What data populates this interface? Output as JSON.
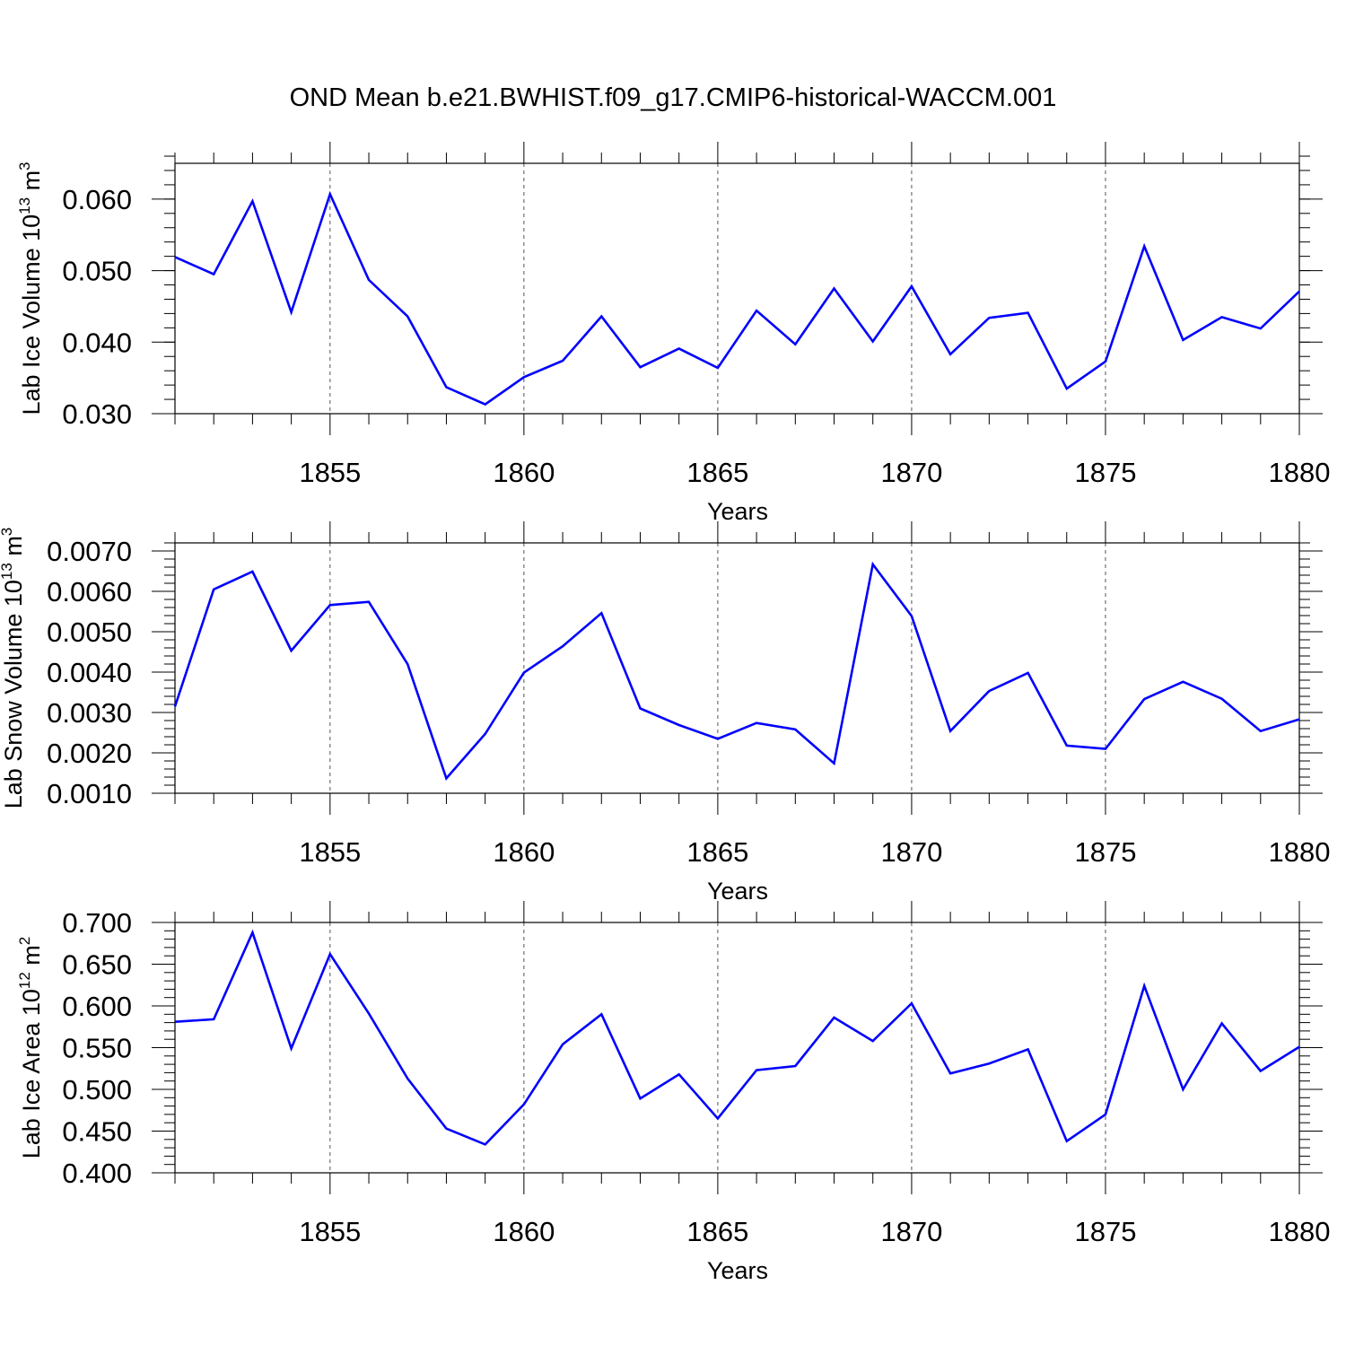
{
  "title": "OND Mean b.e21.BWHIST.f09_g17.CMIP6-historical-WACCM.001",
  "line_color": "#0000ff",
  "chart_data": [
    {
      "type": "line",
      "ylabel": {
        "main": "Lab Ice Volume 10",
        "exp": "13",
        "unit": " m",
        "unit_exp": "3"
      },
      "xlabel": "Years",
      "xlim": [
        1851,
        1880
      ],
      "ylim": [
        0.03,
        0.065
      ],
      "yticks": [
        0.03,
        0.04,
        0.05,
        0.06
      ],
      "ytick_labels": [
        "0.030",
        "0.040",
        "0.050",
        "0.060"
      ],
      "yminor_step": 0.002,
      "xticks": [
        1855,
        1860,
        1865,
        1870,
        1875,
        1880
      ],
      "xtick_labels": [
        "1855",
        "1860",
        "1865",
        "1870",
        "1875",
        "1880"
      ],
      "grid": "x-dashed",
      "x": [
        1851,
        1852,
        1853,
        1854,
        1855,
        1856,
        1857,
        1858,
        1859,
        1860,
        1861,
        1862,
        1863,
        1864,
        1865,
        1866,
        1867,
        1868,
        1869,
        1870,
        1871,
        1872,
        1873,
        1874,
        1875,
        1876,
        1877,
        1878,
        1879,
        1880
      ],
      "values": [
        0.0519,
        0.0495,
        0.0597,
        0.0442,
        0.0607,
        0.0487,
        0.0436,
        0.0337,
        0.0313,
        0.0351,
        0.0374,
        0.0436,
        0.0365,
        0.0391,
        0.0364,
        0.0444,
        0.0397,
        0.0475,
        0.0401,
        0.0478,
        0.0383,
        0.0434,
        0.0441,
        0.0335,
        0.0373,
        0.0534,
        0.0403,
        0.0435,
        0.0419,
        0.0471
      ]
    },
    {
      "type": "line",
      "ylabel": {
        "main": "Lab Snow Volume 10",
        "exp": "13",
        "unit": " m",
        "unit_exp": "3"
      },
      "xlabel": "Years",
      "xlim": [
        1851,
        1880
      ],
      "ylim": [
        0.001,
        0.0072
      ],
      "yticks": [
        0.001,
        0.002,
        0.003,
        0.004,
        0.005,
        0.006,
        0.007
      ],
      "ytick_labels": [
        "0.0010",
        "0.0020",
        "0.0030",
        "0.0040",
        "0.0050",
        "0.0060",
        "0.0070"
      ],
      "yminor_step": 0.0002,
      "xticks": [
        1855,
        1860,
        1865,
        1870,
        1875,
        1880
      ],
      "xtick_labels": [
        "1855",
        "1860",
        "1865",
        "1870",
        "1875",
        "1880"
      ],
      "grid": "x-dashed",
      "x": [
        1851,
        1852,
        1853,
        1854,
        1855,
        1856,
        1857,
        1858,
        1859,
        1860,
        1861,
        1862,
        1863,
        1864,
        1865,
        1866,
        1867,
        1868,
        1869,
        1870,
        1871,
        1872,
        1873,
        1874,
        1875,
        1876,
        1877,
        1878,
        1879,
        1880
      ],
      "values": [
        0.00315,
        0.00605,
        0.00649,
        0.00453,
        0.00566,
        0.00574,
        0.0042,
        0.00137,
        0.00247,
        0.00399,
        0.00464,
        0.00546,
        0.0031,
        0.00269,
        0.00235,
        0.00274,
        0.00258,
        0.00174,
        0.00667,
        0.00539,
        0.00254,
        0.00353,
        0.00398,
        0.00218,
        0.0021,
        0.00333,
        0.00376,
        0.00334,
        0.00254,
        0.00283
      ]
    },
    {
      "type": "line",
      "ylabel": {
        "main": "Lab Ice Area 10",
        "exp": "12",
        "unit": " m",
        "unit_exp": "2"
      },
      "xlabel": "Years",
      "xlim": [
        1851,
        1880
      ],
      "ylim": [
        0.4,
        0.7
      ],
      "yticks": [
        0.4,
        0.45,
        0.5,
        0.55,
        0.6,
        0.65,
        0.7
      ],
      "ytick_labels": [
        "0.400",
        "0.450",
        "0.500",
        "0.550",
        "0.600",
        "0.650",
        "0.700"
      ],
      "yminor_step": 0.01,
      "xticks": [
        1855,
        1860,
        1865,
        1870,
        1875,
        1880
      ],
      "xtick_labels": [
        "1855",
        "1860",
        "1865",
        "1870",
        "1875",
        "1880"
      ],
      "grid": "x-dashed",
      "x": [
        1851,
        1852,
        1853,
        1854,
        1855,
        1856,
        1857,
        1858,
        1859,
        1860,
        1861,
        1862,
        1863,
        1864,
        1865,
        1866,
        1867,
        1868,
        1869,
        1870,
        1871,
        1872,
        1873,
        1874,
        1875,
        1876,
        1877,
        1878,
        1879,
        1880
      ],
      "values": [
        0.581,
        0.584,
        0.688,
        0.549,
        0.662,
        0.591,
        0.513,
        0.453,
        0.434,
        0.482,
        0.554,
        0.59,
        0.489,
        0.518,
        0.465,
        0.523,
        0.528,
        0.586,
        0.558,
        0.603,
        0.519,
        0.531,
        0.548,
        0.438,
        0.47,
        0.624,
        0.5,
        0.579,
        0.522,
        0.551
      ]
    }
  ]
}
